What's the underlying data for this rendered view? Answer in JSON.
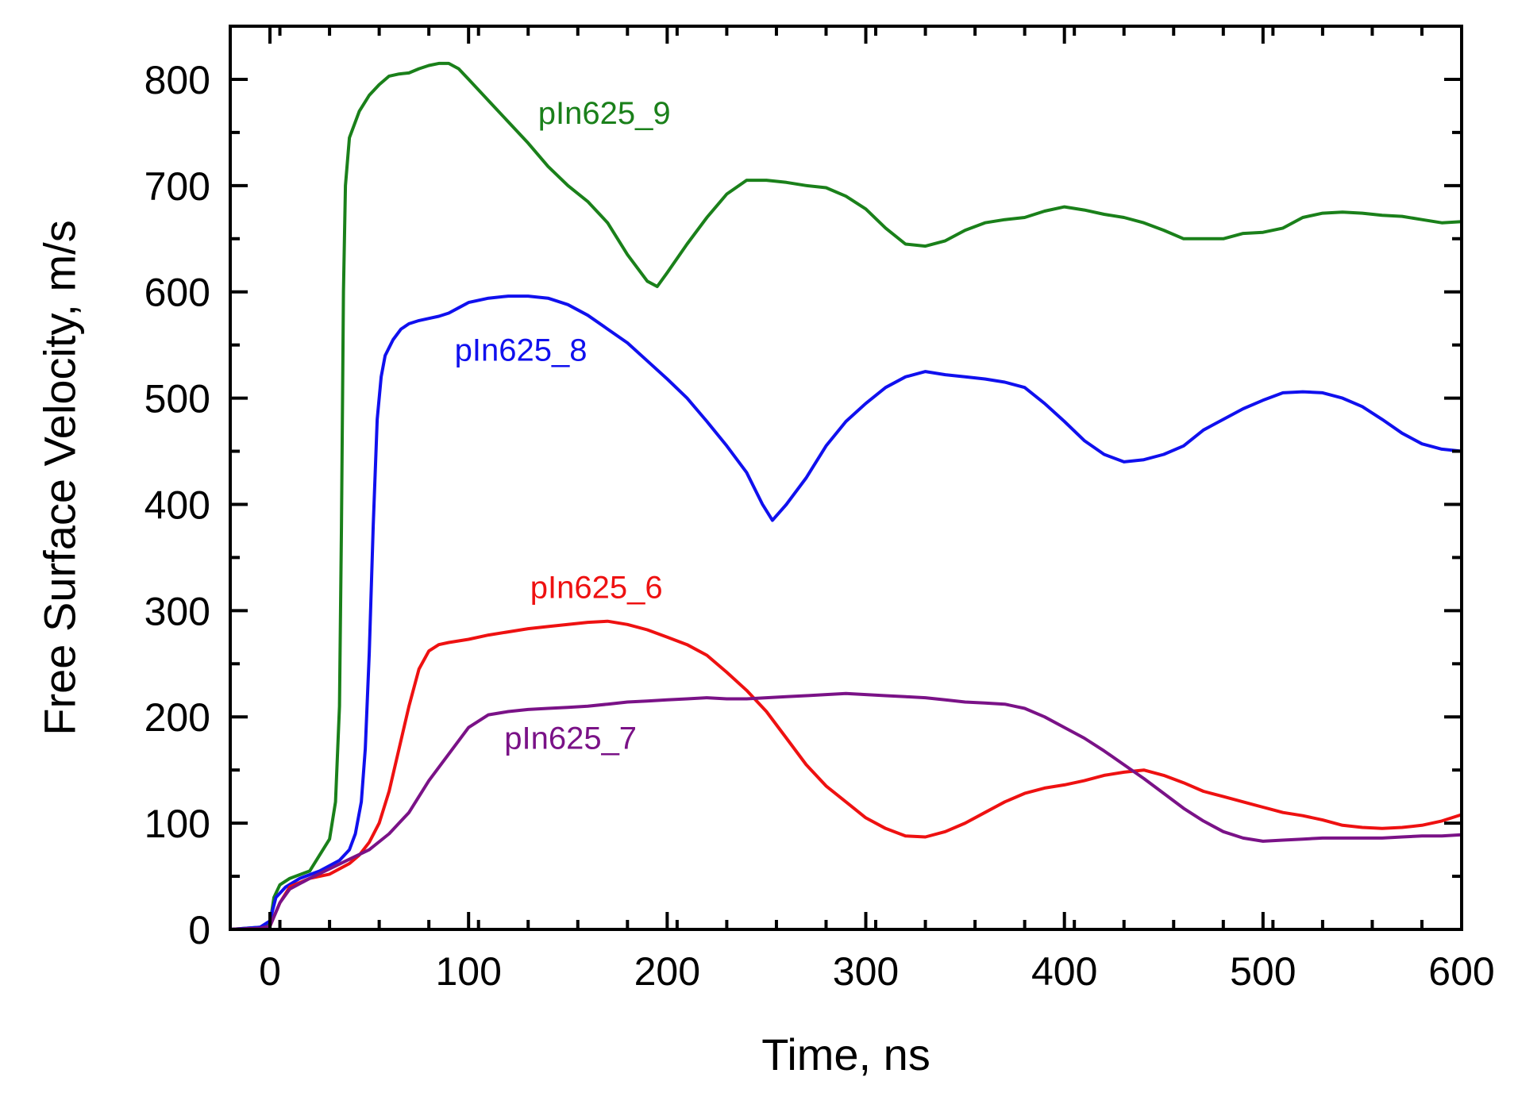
{
  "chart_data": {
    "type": "line",
    "title": "",
    "xlabel": "Time, ns",
    "ylabel": "Free Surface Velocity, m/s",
    "xlim": [
      -20,
      600
    ],
    "ylim": [
      0,
      850
    ],
    "xticks": [
      0,
      100,
      200,
      300,
      400,
      500,
      600
    ],
    "yticks": [
      0,
      100,
      200,
      300,
      400,
      500,
      600,
      700,
      800
    ],
    "xtick_labels": [
      "0",
      "100",
      "200",
      "300",
      "400",
      "500",
      "600"
    ],
    "ytick_labels": [
      "0",
      "100",
      "200",
      "300",
      "400",
      "500",
      "600",
      "700",
      "800"
    ],
    "grid": false,
    "series": [
      {
        "name": "pIn625_9",
        "color": "#1a801a",
        "label_at": [
          135,
          758
        ],
        "points": [
          [
            -20,
            0
          ],
          [
            -5,
            2
          ],
          [
            0,
            5
          ],
          [
            2,
            30
          ],
          [
            5,
            42
          ],
          [
            10,
            48
          ],
          [
            20,
            55
          ],
          [
            25,
            70
          ],
          [
            30,
            85
          ],
          [
            33,
            120
          ],
          [
            35,
            210
          ],
          [
            36,
            380
          ],
          [
            37,
            600
          ],
          [
            38,
            700
          ],
          [
            40,
            745
          ],
          [
            45,
            770
          ],
          [
            50,
            785
          ],
          [
            55,
            795
          ],
          [
            60,
            803
          ],
          [
            65,
            805
          ],
          [
            70,
            806
          ],
          [
            75,
            810
          ],
          [
            80,
            813
          ],
          [
            85,
            815
          ],
          [
            90,
            815
          ],
          [
            95,
            810
          ],
          [
            100,
            800
          ],
          [
            110,
            780
          ],
          [
            120,
            760
          ],
          [
            130,
            740
          ],
          [
            140,
            718
          ],
          [
            150,
            700
          ],
          [
            160,
            685
          ],
          [
            170,
            665
          ],
          [
            180,
            635
          ],
          [
            190,
            610
          ],
          [
            195,
            605
          ],
          [
            200,
            618
          ],
          [
            210,
            645
          ],
          [
            220,
            670
          ],
          [
            230,
            692
          ],
          [
            240,
            705
          ],
          [
            250,
            705
          ],
          [
            260,
            703
          ],
          [
            270,
            700
          ],
          [
            280,
            698
          ],
          [
            290,
            690
          ],
          [
            300,
            678
          ],
          [
            310,
            660
          ],
          [
            320,
            645
          ],
          [
            330,
            643
          ],
          [
            340,
            648
          ],
          [
            350,
            658
          ],
          [
            360,
            665
          ],
          [
            370,
            668
          ],
          [
            380,
            670
          ],
          [
            390,
            676
          ],
          [
            400,
            680
          ],
          [
            410,
            677
          ],
          [
            420,
            673
          ],
          [
            430,
            670
          ],
          [
            440,
            665
          ],
          [
            450,
            658
          ],
          [
            460,
            650
          ],
          [
            470,
            650
          ],
          [
            480,
            650
          ],
          [
            490,
            655
          ],
          [
            500,
            656
          ],
          [
            510,
            660
          ],
          [
            520,
            670
          ],
          [
            530,
            674
          ],
          [
            540,
            675
          ],
          [
            550,
            674
          ],
          [
            560,
            672
          ],
          [
            570,
            671
          ],
          [
            580,
            668
          ],
          [
            590,
            665
          ],
          [
            600,
            666
          ]
        ]
      },
      {
        "name": "pIn625_8",
        "color": "#1010ee",
        "label_at": [
          93,
          535
        ],
        "points": [
          [
            -20,
            0
          ],
          [
            -5,
            2
          ],
          [
            0,
            8
          ],
          [
            3,
            30
          ],
          [
            8,
            40
          ],
          [
            15,
            48
          ],
          [
            25,
            55
          ],
          [
            35,
            65
          ],
          [
            40,
            75
          ],
          [
            43,
            90
          ],
          [
            46,
            120
          ],
          [
            48,
            170
          ],
          [
            50,
            260
          ],
          [
            52,
            380
          ],
          [
            54,
            480
          ],
          [
            56,
            520
          ],
          [
            58,
            540
          ],
          [
            62,
            555
          ],
          [
            66,
            565
          ],
          [
            70,
            570
          ],
          [
            75,
            573
          ],
          [
            80,
            575
          ],
          [
            85,
            577
          ],
          [
            90,
            580
          ],
          [
            95,
            585
          ],
          [
            100,
            590
          ],
          [
            110,
            594
          ],
          [
            120,
            596
          ],
          [
            130,
            596
          ],
          [
            140,
            594
          ],
          [
            150,
            588
          ],
          [
            160,
            578
          ],
          [
            170,
            565
          ],
          [
            180,
            552
          ],
          [
            190,
            535
          ],
          [
            200,
            518
          ],
          [
            210,
            500
          ],
          [
            220,
            478
          ],
          [
            230,
            455
          ],
          [
            240,
            430
          ],
          [
            248,
            400
          ],
          [
            253,
            385
          ],
          [
            260,
            400
          ],
          [
            270,
            425
          ],
          [
            280,
            455
          ],
          [
            290,
            478
          ],
          [
            300,
            495
          ],
          [
            310,
            510
          ],
          [
            320,
            520
          ],
          [
            330,
            525
          ],
          [
            340,
            522
          ],
          [
            350,
            520
          ],
          [
            360,
            518
          ],
          [
            370,
            515
          ],
          [
            380,
            510
          ],
          [
            390,
            495
          ],
          [
            400,
            478
          ],
          [
            410,
            460
          ],
          [
            420,
            447
          ],
          [
            430,
            440
          ],
          [
            440,
            442
          ],
          [
            450,
            447
          ],
          [
            460,
            455
          ],
          [
            470,
            470
          ],
          [
            480,
            480
          ],
          [
            490,
            490
          ],
          [
            500,
            498
          ],
          [
            510,
            505
          ],
          [
            520,
            506
          ],
          [
            530,
            505
          ],
          [
            540,
            500
          ],
          [
            550,
            492
          ],
          [
            560,
            480
          ],
          [
            570,
            467
          ],
          [
            580,
            457
          ],
          [
            590,
            452
          ],
          [
            600,
            450
          ]
        ]
      },
      {
        "name": "pIn625_6",
        "color": "#ee1111",
        "label_at": [
          131,
          312
        ],
        "points": [
          [
            -20,
            0
          ],
          [
            -5,
            1
          ],
          [
            0,
            3
          ],
          [
            5,
            25
          ],
          [
            10,
            40
          ],
          [
            20,
            48
          ],
          [
            30,
            52
          ],
          [
            40,
            62
          ],
          [
            45,
            70
          ],
          [
            50,
            82
          ],
          [
            55,
            100
          ],
          [
            60,
            130
          ],
          [
            65,
            170
          ],
          [
            70,
            210
          ],
          [
            75,
            245
          ],
          [
            80,
            262
          ],
          [
            85,
            268
          ],
          [
            90,
            270
          ],
          [
            100,
            273
          ],
          [
            110,
            277
          ],
          [
            120,
            280
          ],
          [
            130,
            283
          ],
          [
            140,
            285
          ],
          [
            150,
            287
          ],
          [
            160,
            289
          ],
          [
            170,
            290
          ],
          [
            180,
            287
          ],
          [
            190,
            282
          ],
          [
            200,
            275
          ],
          [
            210,
            268
          ],
          [
            220,
            258
          ],
          [
            230,
            242
          ],
          [
            240,
            225
          ],
          [
            250,
            205
          ],
          [
            260,
            180
          ],
          [
            270,
            155
          ],
          [
            280,
            135
          ],
          [
            290,
            120
          ],
          [
            300,
            105
          ],
          [
            310,
            95
          ],
          [
            320,
            88
          ],
          [
            330,
            87
          ],
          [
            340,
            92
          ],
          [
            350,
            100
          ],
          [
            360,
            110
          ],
          [
            370,
            120
          ],
          [
            380,
            128
          ],
          [
            390,
            133
          ],
          [
            400,
            136
          ],
          [
            410,
            140
          ],
          [
            420,
            145
          ],
          [
            430,
            148
          ],
          [
            440,
            150
          ],
          [
            450,
            145
          ],
          [
            460,
            138
          ],
          [
            470,
            130
          ],
          [
            480,
            125
          ],
          [
            490,
            120
          ],
          [
            500,
            115
          ],
          [
            510,
            110
          ],
          [
            520,
            107
          ],
          [
            530,
            103
          ],
          [
            540,
            98
          ],
          [
            550,
            96
          ],
          [
            560,
            95
          ],
          [
            570,
            96
          ],
          [
            580,
            98
          ],
          [
            590,
            102
          ],
          [
            600,
            108
          ]
        ]
      },
      {
        "name": "pIn625_7",
        "color": "#7a1287",
        "label_at": [
          118,
          170
        ],
        "points": [
          [
            -20,
            0
          ],
          [
            -5,
            1
          ],
          [
            0,
            3
          ],
          [
            5,
            25
          ],
          [
            10,
            38
          ],
          [
            20,
            48
          ],
          [
            30,
            57
          ],
          [
            40,
            66
          ],
          [
            50,
            75
          ],
          [
            60,
            90
          ],
          [
            70,
            110
          ],
          [
            80,
            140
          ],
          [
            90,
            165
          ],
          [
            100,
            190
          ],
          [
            110,
            202
          ],
          [
            120,
            205
          ],
          [
            130,
            207
          ],
          [
            140,
            208
          ],
          [
            150,
            209
          ],
          [
            160,
            210
          ],
          [
            170,
            212
          ],
          [
            180,
            214
          ],
          [
            190,
            215
          ],
          [
            200,
            216
          ],
          [
            210,
            217
          ],
          [
            220,
            218
          ],
          [
            230,
            217
          ],
          [
            240,
            217
          ],
          [
            250,
            218
          ],
          [
            260,
            219
          ],
          [
            270,
            220
          ],
          [
            280,
            221
          ],
          [
            290,
            222
          ],
          [
            300,
            221
          ],
          [
            310,
            220
          ],
          [
            320,
            219
          ],
          [
            330,
            218
          ],
          [
            340,
            216
          ],
          [
            350,
            214
          ],
          [
            360,
            213
          ],
          [
            370,
            212
          ],
          [
            380,
            208
          ],
          [
            390,
            200
          ],
          [
            400,
            190
          ],
          [
            410,
            180
          ],
          [
            420,
            168
          ],
          [
            430,
            155
          ],
          [
            440,
            142
          ],
          [
            450,
            128
          ],
          [
            460,
            114
          ],
          [
            470,
            102
          ],
          [
            480,
            92
          ],
          [
            490,
            86
          ],
          [
            500,
            83
          ],
          [
            510,
            84
          ],
          [
            520,
            85
          ],
          [
            530,
            86
          ],
          [
            540,
            86
          ],
          [
            550,
            86
          ],
          [
            560,
            86
          ],
          [
            570,
            87
          ],
          [
            580,
            88
          ],
          [
            590,
            88
          ],
          [
            600,
            89
          ]
        ]
      }
    ]
  }
}
